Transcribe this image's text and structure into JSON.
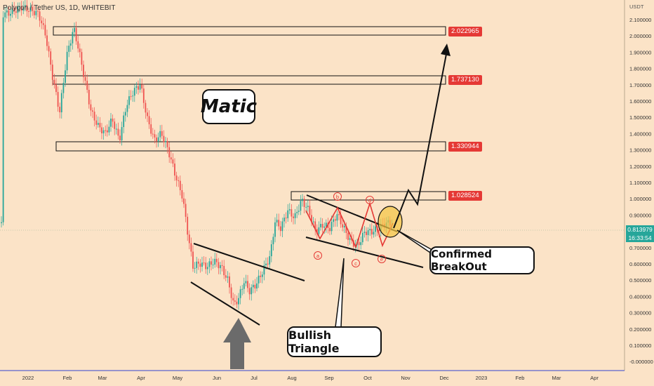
{
  "header": {
    "symbol_text": "Polygon / Tether US, 1D, WHITEBIT"
  },
  "annotations": {
    "matic": "Matic",
    "confirmed_breakout": "Confirmed BreakOut",
    "bullish_triangle": "Bullish Triangle",
    "wave_points": [
      "a",
      "b",
      "c",
      "d",
      "e"
    ]
  },
  "price_tags": {
    "level1": "2.022965",
    "level2": "1.737130",
    "level3": "1.330944",
    "level4": "1.028524"
  },
  "current_price": {
    "price": "0.813979",
    "countdown": "16:33:54"
  },
  "chart_data": {
    "type": "candlestick",
    "xaxis_labels": [
      "2022",
      "Feb",
      "Mar",
      "Apr",
      "May",
      "Jun",
      "Jul",
      "Aug",
      "Sep",
      "Oct",
      "Nov",
      "Dec",
      "2023",
      "Feb",
      "Mar",
      "Apr"
    ],
    "yaxis_unit": "USDT",
    "yaxis_labels": [
      "2.100000",
      "2.000000",
      "1.900000",
      "1.800000",
      "1.700000",
      "1.600000",
      "1.500000",
      "1.400000",
      "1.300000",
      "1.200000",
      "1.100000",
      "1.000000",
      "0.900000",
      "0.800000",
      "0.700000",
      "0.600000",
      "0.500000",
      "0.400000",
      "0.300000",
      "0.200000",
      "0.100000",
      "-0.000000"
    ],
    "ylim": [
      0,
      2.2
    ],
    "resistance_levels": [
      2.022965,
      1.73713,
      1.330944,
      1.028524
    ],
    "last_price": 0.813979,
    "colors": {
      "up": "#26a69a",
      "down": "#ef5350",
      "tag": "#e53935",
      "background": "#fbe3c7"
    }
  }
}
